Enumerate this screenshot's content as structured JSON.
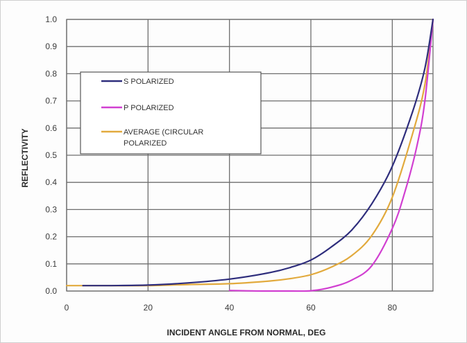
{
  "chart_data": {
    "type": "line",
    "title": "",
    "xlabel": "INCIDENT ANGLE FROM NORMAL, DEG",
    "ylabel": "REFLECTIVITY",
    "xlim": [
      0,
      90
    ],
    "ylim": [
      0,
      1.0
    ],
    "x_ticks": [
      "0",
      "20",
      "40",
      "60",
      "80"
    ],
    "y_ticks": [
      "0.0",
      "0.1",
      "0.2",
      "0.3",
      "0.4",
      "0.5",
      "0.6",
      "0.7",
      "0.8",
      "0.9",
      "1.0"
    ],
    "grid": true,
    "legend_position": "upper-left",
    "series": [
      {
        "name": "S POLARIZED",
        "color": "#2e2d7c",
        "x": [
          4,
          10,
          20,
          30,
          40,
          50,
          55,
          60,
          65,
          70,
          75,
          80,
          85,
          88,
          90
        ],
        "y": [
          0.02,
          0.02,
          0.022,
          0.03,
          0.044,
          0.068,
          0.087,
          0.114,
          0.162,
          0.224,
          0.322,
          0.459,
          0.661,
          0.82,
          1.0
        ]
      },
      {
        "name": "P POLARIZED",
        "color": "#d13fd1",
        "x": [
          40,
          48,
          55,
          60,
          65,
          70,
          75,
          80,
          83,
          86,
          88,
          90
        ],
        "y": [
          0.002,
          0.0,
          0.0,
          0.001,
          0.014,
          0.04,
          0.094,
          0.23,
          0.36,
          0.53,
          0.7,
          1.0
        ]
      },
      {
        "name": "AVERAGE (CIRCULAR POLARIZED",
        "color": "#e2aa3d",
        "x": [
          0,
          10,
          20,
          30,
          40,
          50,
          55,
          60,
          65,
          70,
          75,
          80,
          85,
          88,
          90
        ],
        "y": [
          0.02,
          0.02,
          0.02,
          0.024,
          0.027,
          0.037,
          0.046,
          0.06,
          0.088,
          0.13,
          0.205,
          0.345,
          0.58,
          0.76,
          1.0
        ]
      }
    ]
  }
}
